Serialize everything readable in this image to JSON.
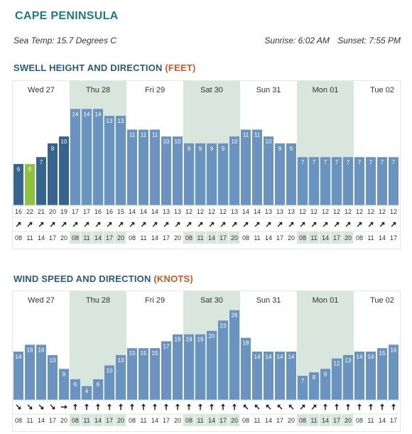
{
  "header": {
    "title": "CAPE PENINSULA",
    "sea_temp": "Sea Temp: 15.7 Degrees C",
    "sunrise": "Sunrise: 6:02 AM",
    "sunset": "Sunset: 7:55 PM"
  },
  "colors": {
    "bar": "#6a93bf",
    "bar_past": "#35648e",
    "bar_current": "#8fc23d",
    "shade": "#d8e6de",
    "title": "#1f7a86",
    "section": "#2d5a7a",
    "paren": "#c75b28"
  },
  "days": [
    "Wed 27",
    "Thu 28",
    "Fri 29",
    "Sat 30",
    "Sun 31",
    "Mon 01",
    "Tue 02"
  ],
  "shaded_days": [
    1,
    3,
    5
  ],
  "hours": [
    "08",
    "11",
    "14",
    "17",
    "20",
    "08",
    "11",
    "14",
    "17",
    "20",
    "08",
    "11",
    "14",
    "17",
    "20",
    "08",
    "11",
    "14",
    "17",
    "20",
    "08",
    "11",
    "14",
    "17",
    "20",
    "08",
    "11",
    "14",
    "17",
    "20",
    "08",
    "11",
    "14",
    "17"
  ],
  "swell": {
    "title_main": "SWELL HEIGHT AND DIRECTION",
    "title_unit": "(FEET)",
    "chart_data": {
      "type": "bar",
      "values": [
        6,
        6,
        7,
        9,
        10,
        14,
        14,
        14,
        13,
        13,
        11,
        11,
        11,
        10,
        10,
        9,
        9,
        9,
        9,
        10,
        11,
        11,
        10,
        9,
        9,
        7,
        7,
        7,
        7,
        7,
        7,
        7,
        7,
        7
      ],
      "current_index": 1,
      "past_count": 5,
      "ylim": [
        0,
        16
      ]
    },
    "periods": [
      "16",
      "22",
      "21",
      "20",
      "19",
      "17",
      "17",
      "16",
      "16",
      "15",
      "14",
      "14",
      "14",
      "13",
      "13",
      "12",
      "12",
      "12",
      "12",
      "13",
      "14",
      "14",
      "13",
      "13",
      "13",
      "12",
      "12",
      "12",
      "12",
      "12",
      "12",
      "12",
      "12",
      "12"
    ],
    "direction_icon": "north-east-arrow-icon"
  },
  "wind": {
    "title_main": "WIND SPEED AND DIRECTION",
    "title_unit": "(KNOTS)",
    "chart_data": {
      "type": "bar",
      "values": [
        14,
        16,
        16,
        13,
        9,
        6,
        4,
        6,
        10,
        13,
        15,
        15,
        15,
        17,
        19,
        19,
        19,
        20,
        23,
        26,
        18,
        14,
        14,
        14,
        14,
        7,
        8,
        9,
        12,
        13,
        14,
        14,
        15,
        16
      ],
      "ylim": [
        0,
        28
      ]
    },
    "direction_icons": [
      "south-east-arrow-icon",
      "south-east-arrow-icon",
      "south-east-arrow-icon",
      "south-east-arrow-icon",
      "east-arrow-icon",
      "north-arrow-icon",
      "north-arrow-icon",
      "north-arrow-icon",
      "north-arrow-icon",
      "north-arrow-icon",
      "north-arrow-icon",
      "north-arrow-icon",
      "north-arrow-icon",
      "north-arrow-icon",
      "north-arrow-icon",
      "north-arrow-icon",
      "north-arrow-icon",
      "north-arrow-icon",
      "north-arrow-icon",
      "north-arrow-icon",
      "north-west-arrow-icon",
      "north-west-arrow-icon",
      "north-west-arrow-icon",
      "north-west-arrow-icon",
      "north-west-arrow-icon",
      "north-east-arrow-icon",
      "north-east-arrow-icon",
      "north-arrow-icon",
      "north-arrow-icon",
      "north-arrow-icon",
      "north-arrow-icon",
      "north-arrow-icon",
      "north-arrow-icon",
      "north-arrow-icon"
    ]
  }
}
